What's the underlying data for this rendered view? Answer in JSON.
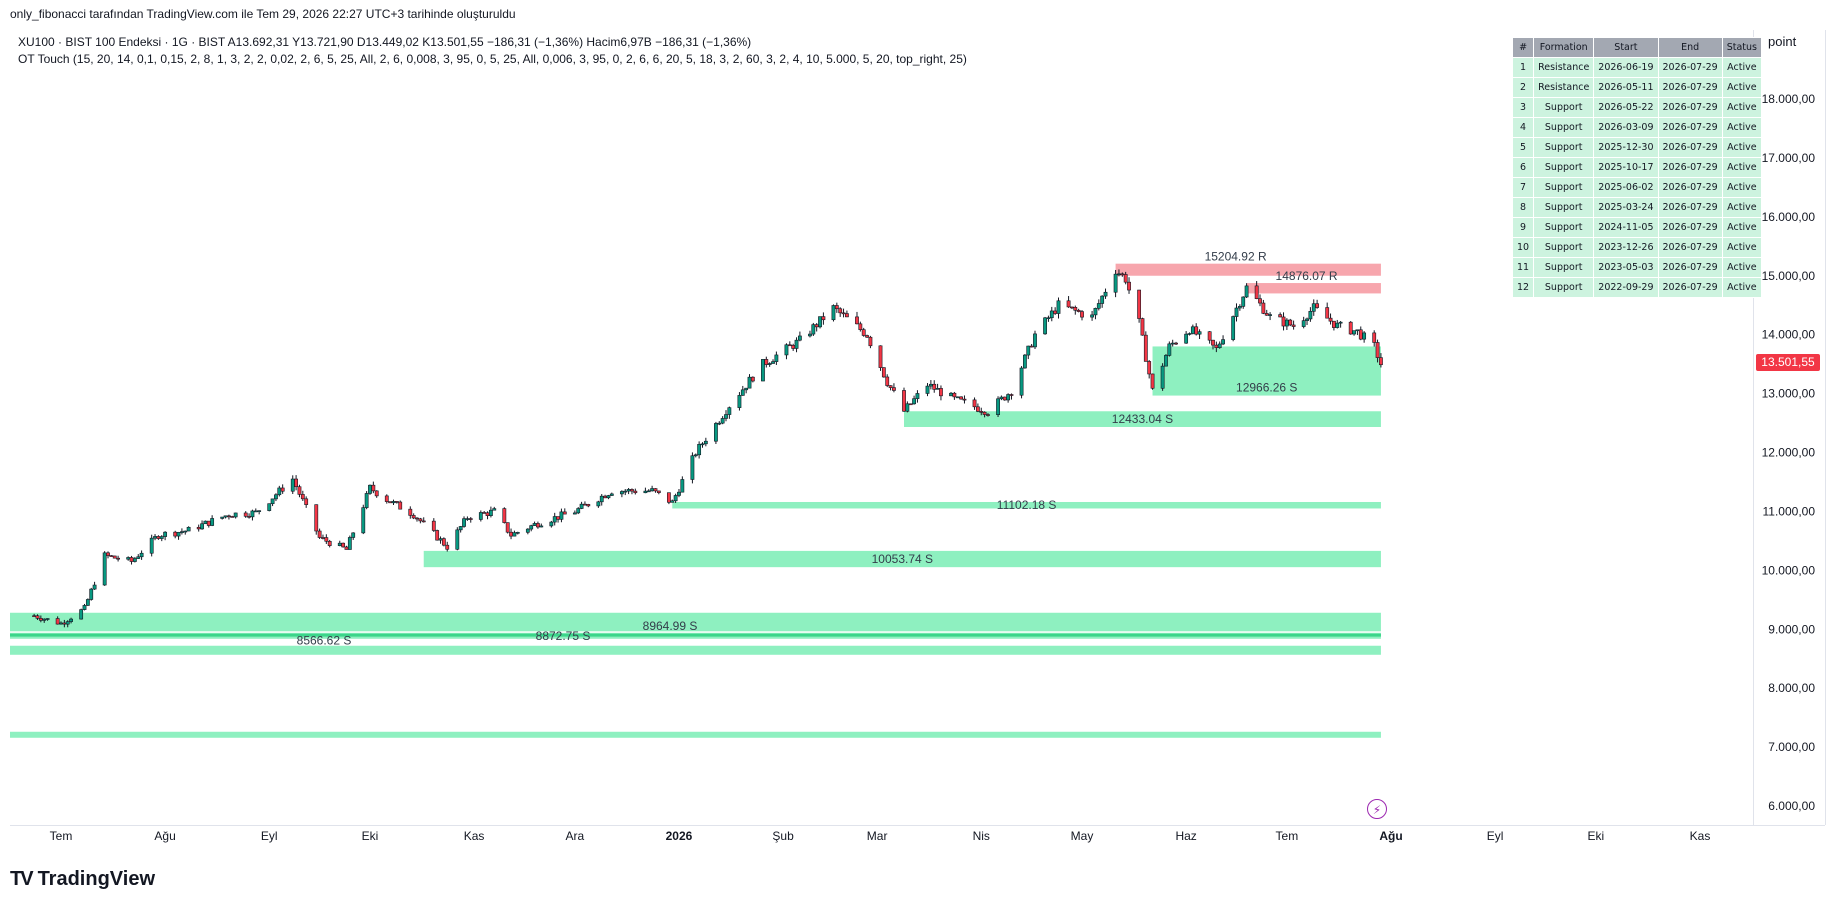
{
  "header": {
    "caption": "only_fibonacci tarafından TradingView.com ile Tem 29, 2026 22:27 UTC+3 tarihinde oluşturuldu"
  },
  "legend": {
    "symbol_line": "XU100 · BIST 100 Endeksi · 1G · BIST   A13.692,31  Y13.721,90  D13.449,02  K13.501,55  −186,31 (−1,36%)   Hacim6,97B  −186,31 (−1,36%)",
    "indicator_line": "OT Touch (15, 20, 14, 0,1, 0,15, 2, 8, 1, 3, 2, 2, 0,02, 2, 6, 5, 25, All, 2, 6, 0,008, 3, 95, 0, 5, 25, All, 0,006, 3, 95, 0, 2, 6, 6, 20, 5, 18, 3, 2, 60, 3, 2, 4, 10, 5.000, 5, 20, top_right, 25)"
  },
  "table": {
    "headers": [
      "#",
      "Formation",
      "Start",
      "End",
      "Status"
    ],
    "rows": [
      [
        "1",
        "Resistance",
        "2026-06-19",
        "2026-07-29",
        "Active"
      ],
      [
        "2",
        "Resistance",
        "2026-05-11",
        "2026-07-29",
        "Active"
      ],
      [
        "3",
        "Support",
        "2026-05-22",
        "2026-07-29",
        "Active"
      ],
      [
        "4",
        "Support",
        "2026-03-09",
        "2026-07-29",
        "Active"
      ],
      [
        "5",
        "Support",
        "2025-12-30",
        "2026-07-29",
        "Active"
      ],
      [
        "6",
        "Support",
        "2025-10-17",
        "2026-07-29",
        "Active"
      ],
      [
        "7",
        "Support",
        "2025-06-02",
        "2026-07-29",
        "Active"
      ],
      [
        "8",
        "Support",
        "2025-03-24",
        "2026-07-29",
        "Active"
      ],
      [
        "9",
        "Support",
        "2024-11-05",
        "2026-07-29",
        "Active"
      ],
      [
        "10",
        "Support",
        "2023-12-26",
        "2026-07-29",
        "Active"
      ],
      [
        "11",
        "Support",
        "2023-05-03",
        "2026-07-29",
        "Active"
      ],
      [
        "12",
        "Support",
        "2022-09-29",
        "2026-07-29",
        "Active"
      ]
    ]
  },
  "scale_button": "point",
  "price_tag": "13.501,55",
  "logo_text": "TradingView",
  "colors": {
    "up": "#089981",
    "down": "#f23645",
    "support_zone": "#8ef0c0",
    "resistance_zone": "#f7a6ad",
    "price_tag": "#f23645"
  },
  "chart_data": {
    "type": "candlestick",
    "y_axis": {
      "min": 6000,
      "max": 18000,
      "ticks": [
        6000,
        7000,
        8000,
        9000,
        10000,
        11000,
        12000,
        13000,
        14000,
        15000,
        16000,
        17000,
        18000
      ],
      "tick_labels": [
        "6.000,00",
        "7.000,00",
        "8.000,00",
        "9.000,00",
        "10.000,00",
        "11.000,00",
        "12.000,00",
        "13.000,00",
        "14.000,00",
        "15.000,00",
        "16.000,00",
        "17.000,00",
        "18.000,00"
      ]
    },
    "x_axis": {
      "months": [
        {
          "label": "Tem",
          "date": "2025-07-01",
          "bold": false
        },
        {
          "label": "Ağu",
          "date": "2025-08-01",
          "bold": false
        },
        {
          "label": "Eyl",
          "date": "2025-09-01",
          "bold": false
        },
        {
          "label": "Eki",
          "date": "2025-10-01",
          "bold": false
        },
        {
          "label": "Kas",
          "date": "2025-11-01",
          "bold": false
        },
        {
          "label": "Ara",
          "date": "2025-12-01",
          "bold": false
        },
        {
          "label": "2026",
          "date": "2026-01-01",
          "bold": true
        },
        {
          "label": "Şub",
          "date": "2026-02-01",
          "bold": false
        },
        {
          "label": "Mar",
          "date": "2026-03-01",
          "bold": false
        },
        {
          "label": "Nis",
          "date": "2026-04-01",
          "bold": false
        },
        {
          "label": "May",
          "date": "2026-05-01",
          "bold": false
        },
        {
          "label": "Haz",
          "date": "2026-06-01",
          "bold": false
        },
        {
          "label": "Tem",
          "date": "2026-07-01",
          "bold": false
        },
        {
          "label": "Ağu",
          "date": "2026-08-01",
          "bold": true
        },
        {
          "label": "Eyl",
          "date": "2026-09-01",
          "bold": false
        },
        {
          "label": "Eki",
          "date": "2026-10-01",
          "bold": false
        },
        {
          "label": "Kas",
          "date": "2026-11-01",
          "bold": false
        }
      ]
    },
    "price_path": [
      [
        "2025-06-23",
        9230
      ],
      [
        "2025-07-01",
        9100
      ],
      [
        "2025-07-08",
        9350
      ],
      [
        "2025-07-14",
        10250
      ],
      [
        "2025-07-22",
        10150
      ],
      [
        "2025-07-30",
        10600
      ],
      [
        "2025-08-08",
        10680
      ],
      [
        "2025-08-20",
        10950
      ],
      [
        "2025-08-28",
        10980
      ],
      [
        "2025-09-08",
        11550
      ],
      [
        "2025-09-16",
        10550
      ],
      [
        "2025-09-24",
        10350
      ],
      [
        "2025-10-01",
        11400
      ],
      [
        "2025-10-06",
        11200
      ],
      [
        "2025-10-14",
        10950
      ],
      [
        "2025-10-24",
        10400
      ],
      [
        "2025-10-30",
        10900
      ],
      [
        "2025-11-07",
        11000
      ],
      [
        "2025-11-12",
        10600
      ],
      [
        "2025-11-20",
        10800
      ],
      [
        "2025-12-01",
        11000
      ],
      [
        "2025-12-12",
        11350
      ],
      [
        "2025-12-24",
        11350
      ],
      [
        "2025-12-30",
        11150
      ],
      [
        "2026-01-06",
        12000
      ],
      [
        "2026-01-16",
        12800
      ],
      [
        "2026-01-26",
        13500
      ],
      [
        "2026-02-06",
        13900
      ],
      [
        "2026-02-16",
        14450
      ],
      [
        "2026-02-26",
        14000
      ],
      [
        "2026-03-04",
        13200
      ],
      [
        "2026-03-09",
        12700
      ],
      [
        "2026-03-16",
        13150
      ],
      [
        "2026-03-24",
        12900
      ],
      [
        "2026-04-03",
        12700
      ],
      [
        "2026-04-10",
        13050
      ],
      [
        "2026-04-17",
        14000
      ],
      [
        "2026-04-24",
        14500
      ],
      [
        "2026-05-04",
        14300
      ],
      [
        "2026-05-11",
        15100
      ],
      [
        "2026-05-14",
        14950
      ],
      [
        "2026-05-18",
        14200
      ],
      [
        "2026-05-22",
        13050
      ],
      [
        "2026-05-27",
        13800
      ],
      [
        "2026-06-02",
        14100
      ],
      [
        "2026-06-10",
        13750
      ],
      [
        "2026-06-19",
        14800
      ],
      [
        "2026-06-26",
        14300
      ],
      [
        "2026-07-03",
        14150
      ],
      [
        "2026-07-09",
        14450
      ],
      [
        "2026-07-16",
        14150
      ],
      [
        "2026-07-22",
        14050
      ],
      [
        "2026-07-27",
        13800
      ],
      [
        "2026-07-29",
        13501.55
      ]
    ],
    "zones": [
      {
        "type": "resistance",
        "start": "2026-05-11",
        "end": "2026-07-29",
        "low": 15000,
        "high": 15204.92,
        "label": "15204.92 R"
      },
      {
        "type": "resistance",
        "start": "2026-06-19",
        "end": "2026-07-29",
        "low": 14700,
        "high": 14876.07,
        "label": "14876.07 R"
      },
      {
        "type": "support",
        "start": "2026-05-22",
        "end": "2026-07-29",
        "low": 12966.26,
        "high": 13800,
        "label": "12966.26 S"
      },
      {
        "type": "support",
        "start": "2026-03-09",
        "end": "2026-07-29",
        "low": 12433.04,
        "high": 12700,
        "label": "12433.04 S"
      },
      {
        "type": "support",
        "start": "2025-12-30",
        "end": "2026-07-29",
        "low": 11050,
        "high": 11160,
        "label": "11102.18 S"
      },
      {
        "type": "support",
        "start": "2025-10-17",
        "end": "2026-07-29",
        "low": 10053.74,
        "high": 10330,
        "label": "10053.74 S"
      },
      {
        "type": "support",
        "start": "2025-06-02",
        "end": "2026-07-29",
        "low": 8964.99,
        "high": 9280,
        "label": "8964.99 S"
      },
      {
        "type": "support",
        "start": "2025-03-24",
        "end": "2026-07-29",
        "low": 8850,
        "high": 8940,
        "label": "8872.75 S"
      },
      {
        "type": "support",
        "start": "2024-11-05",
        "end": "2026-07-29",
        "low": 8566.62,
        "high": 8720,
        "label": "8566.62 S"
      },
      {
        "type": "support",
        "start": "2023-12-26",
        "end": "2026-07-29",
        "low": 7180,
        "high": 7260,
        "label": ""
      }
    ],
    "last_price": 13501.55
  }
}
